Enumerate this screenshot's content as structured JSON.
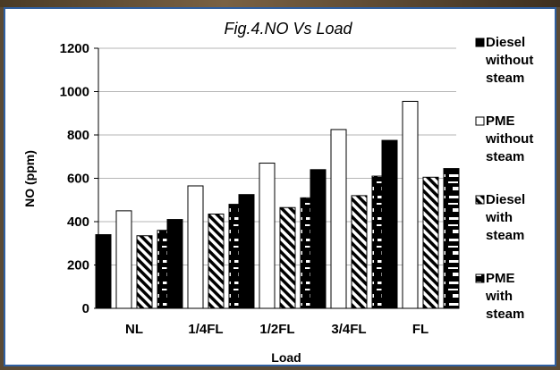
{
  "chart_data": {
    "type": "bar",
    "title": "Fig.4.NO Vs Load",
    "xlabel": "Load",
    "ylabel": "NO  (ppm)",
    "ylim": [
      0,
      1200
    ],
    "yticks": [
      "0",
      "200",
      "400",
      "600",
      "800",
      "1000",
      "1200"
    ],
    "categories": [
      "NL",
      "1/4FL",
      "1/2FL",
      "3/4FL",
      "FL"
    ],
    "grid": true,
    "legend_position": "right",
    "series": [
      {
        "name": "Diesel without steam",
        "legend_lines": [
          "Diesel",
          "without",
          "steam"
        ],
        "pattern": "solid",
        "values": [
          340,
          410,
          525,
          640,
          775
        ]
      },
      {
        "name": "PME without steam",
        "legend_lines": [
          "PME",
          "without",
          "steam"
        ],
        "pattern": "white",
        "values": [
          450,
          565,
          670,
          825,
          955
        ]
      },
      {
        "name": "Diesel with steam",
        "legend_lines": [
          "Diesel",
          "with",
          "steam"
        ],
        "pattern": "hatch",
        "values": [
          335,
          435,
          465,
          520,
          605
        ]
      },
      {
        "name": "PME with steam",
        "legend_lines": [
          "PME",
          "with",
          "steam"
        ],
        "pattern": "stripes",
        "values": [
          360,
          480,
          510,
          610,
          645
        ]
      }
    ]
  }
}
